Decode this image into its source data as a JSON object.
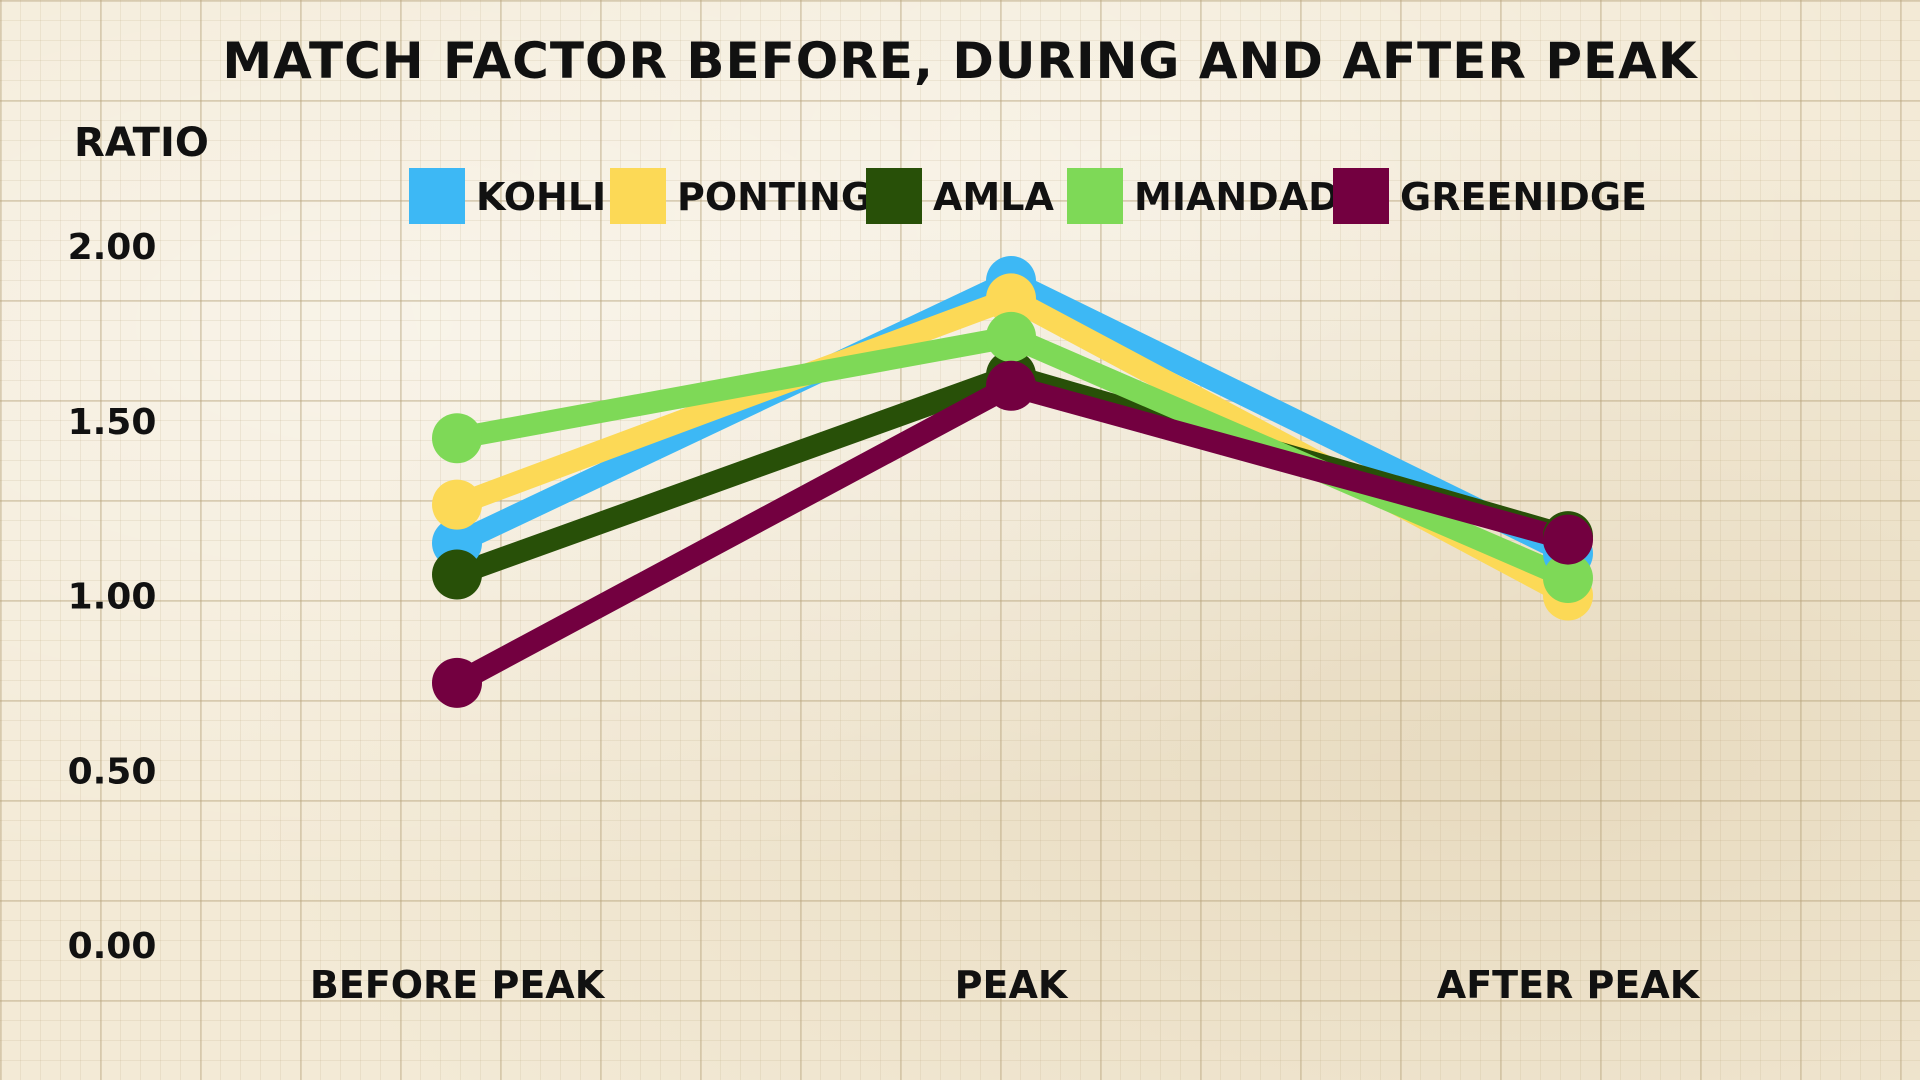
{
  "chart_data": {
    "type": "line",
    "title": "MATCH FACTOR BEFORE, DURING AND AFTER PEAK",
    "ylabel": "RATIO",
    "xlabel": "",
    "categories": [
      "BEFORE PEAK",
      "PEAK",
      "AFTER PEAK"
    ],
    "ylim": [
      0,
      2
    ],
    "yticks": [
      "0.00",
      "0.50",
      "1.00",
      "1.50",
      "2.00"
    ],
    "legend_position": "top",
    "series": [
      {
        "name": "KOHLI",
        "color": "#3db8f5",
        "values": [
          1.15,
          1.9,
          1.12
        ]
      },
      {
        "name": "PONTING",
        "color": "#fcd956",
        "values": [
          1.26,
          1.85,
          1.0
        ]
      },
      {
        "name": "AMLA",
        "color": "#285008",
        "values": [
          1.06,
          1.63,
          1.17
        ]
      },
      {
        "name": "MIANDAD",
        "color": "#7ed957",
        "values": [
          1.45,
          1.74,
          1.05
        ]
      },
      {
        "name": "GREENIDGE",
        "color": "#730040",
        "values": [
          0.75,
          1.6,
          1.16
        ]
      }
    ]
  }
}
